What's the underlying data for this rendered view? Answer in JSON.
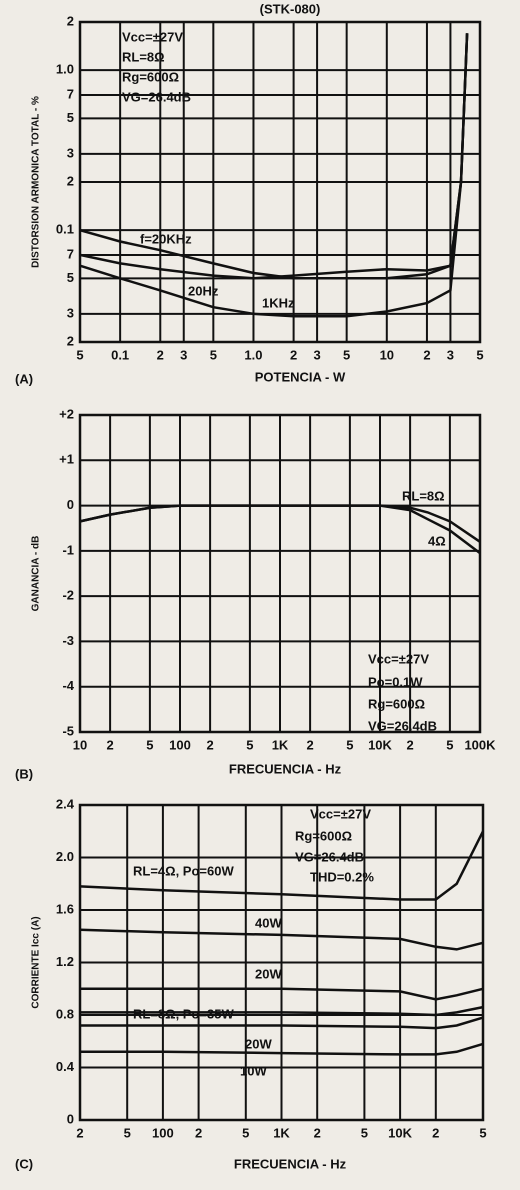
{
  "chart_data": [
    {
      "type": "line",
      "title": "(STK-080)",
      "panel_label": "(A)",
      "xlabel": "POTENCIA - W",
      "ylabel": "DISTORSION ARMONICA TOTAL - %",
      "xscale": "log",
      "yscale": "log",
      "grid": true,
      "xlim": [
        0.05,
        50
      ],
      "ylim": [
        0.02,
        2
      ],
      "xticks": [
        {
          "value": 0.05,
          "label": "5"
        },
        0.1,
        {
          "value": 0.2,
          "label": "2"
        },
        {
          "value": 0.3,
          "label": "3"
        },
        {
          "value": 0.5,
          "label": "5"
        },
        {
          "value": 1,
          "label": "1.0"
        },
        2,
        3,
        5,
        10,
        {
          "value": 20,
          "label": "2"
        },
        {
          "value": 30,
          "label": "3"
        },
        {
          "value": 50,
          "label": "5"
        }
      ],
      "yticks": [
        {
          "value": 0.02,
          "label": "2"
        },
        {
          "value": 0.03,
          "label": "3"
        },
        {
          "value": 0.05,
          "label": "5"
        },
        {
          "value": 0.07,
          "label": "7"
        },
        0.1,
        {
          "value": 0.2,
          "label": "2"
        },
        {
          "value": 0.3,
          "label": "3"
        },
        {
          "value": 0.5,
          "label": "5"
        },
        {
          "value": 0.7,
          "label": "7"
        },
        {
          "value": 1,
          "label": "1.0"
        },
        2
      ],
      "annotations": [
        "Vcc=±27V",
        "RL=8Ω",
        "Rg=600Ω",
        "VG=26.4dB"
      ],
      "x": [
        0.05,
        0.1,
        0.2,
        0.5,
        1,
        2,
        5,
        10,
        20,
        30,
        36,
        40
      ],
      "series": [
        {
          "name": "f=20KHz",
          "color": "#111",
          "values": [
            0.1,
            0.085,
            0.075,
            0.062,
            0.054,
            0.05,
            0.05,
            0.05,
            0.053,
            0.06,
            0.2,
            1.7
          ]
        },
        {
          "name": "20Hz",
          "color": "#111",
          "values": [
            0.07,
            0.062,
            0.057,
            0.052,
            0.05,
            0.052,
            0.055,
            0.057,
            0.056,
            0.06,
            0.2,
            1.7
          ]
        },
        {
          "name": "1KHz",
          "color": "#111",
          "values": [
            0.06,
            0.05,
            0.042,
            0.033,
            0.03,
            0.029,
            0.029,
            0.031,
            0.035,
            0.042,
            0.2,
            1.7
          ]
        }
      ]
    },
    {
      "type": "line",
      "panel_label": "(B)",
      "xlabel": "FRECUENCIA - Hz",
      "ylabel": "GANANCIA - dB",
      "xscale": "log",
      "yscale": "linear",
      "grid": true,
      "xlim": [
        10,
        100000
      ],
      "ylim": [
        -5,
        2
      ],
      "xticks": [
        10,
        {
          "value": 20,
          "label": "2"
        },
        {
          "value": 50,
          "label": "5"
        },
        100,
        {
          "value": 200,
          "label": "2"
        },
        {
          "value": 500,
          "label": "5"
        },
        {
          "value": 1000,
          "label": "1K"
        },
        {
          "value": 2000,
          "label": "2"
        },
        {
          "value": 5000,
          "label": "5"
        },
        {
          "value": 10000,
          "label": "10K"
        },
        {
          "value": 20000,
          "label": "2"
        },
        {
          "value": 50000,
          "label": "5"
        },
        {
          "value": 100000,
          "label": "100K"
        }
      ],
      "yticks": [
        {
          "value": 2,
          "label": "+2"
        },
        {
          "value": 1,
          "label": "+1"
        },
        0,
        -1,
        -2,
        -3,
        -4,
        -5
      ],
      "annotations": [
        "Vcc=±27V",
        "Po=0.1W",
        "Rg=600Ω",
        "VG=26.4dB"
      ],
      "x": [
        10,
        20,
        50,
        100,
        1000,
        10000,
        20000,
        30000,
        50000,
        100000
      ],
      "series": [
        {
          "name": "RL=8Ω",
          "color": "#111",
          "values": [
            -0.35,
            -0.2,
            -0.05,
            0,
            0,
            0,
            -0.05,
            -0.15,
            -0.35,
            -0.8
          ]
        },
        {
          "name": "4Ω",
          "color": "#111",
          "values": [
            -0.35,
            -0.2,
            -0.05,
            0,
            0,
            0,
            -0.1,
            -0.3,
            -0.55,
            -1.05
          ]
        }
      ]
    },
    {
      "type": "line",
      "panel_label": "(C)",
      "xlabel": "FRECUENCIA - Hz",
      "ylabel": "CORRIENTE Icc (A)",
      "xscale": "log",
      "yscale": "linear",
      "grid": true,
      "xlim": [
        20,
        50000
      ],
      "ylim": [
        0,
        2.4
      ],
      "xticks": [
        {
          "value": 20,
          "label": "2"
        },
        {
          "value": 50,
          "label": "5"
        },
        100,
        {
          "value": 200,
          "label": "2"
        },
        {
          "value": 500,
          "label": "5"
        },
        {
          "value": 1000,
          "label": "1K"
        },
        {
          "value": 2000,
          "label": "2"
        },
        {
          "value": 5000,
          "label": "5"
        },
        {
          "value": 10000,
          "label": "10K"
        },
        {
          "value": 20000,
          "label": "2"
        },
        {
          "value": 50000,
          "label": "5"
        }
      ],
      "yticks": [
        0,
        0.4,
        0.8,
        1.2,
        1.6,
        {
          "value": 2,
          "label": "2.0"
        },
        2.4
      ],
      "annotations": [
        "Vcc=±27V",
        "Rg=600Ω",
        "VG=26.4dB",
        "THD=0.2%"
      ],
      "x": [
        20,
        100,
        1000,
        10000,
        20000,
        30000,
        50000
      ],
      "series": [
        {
          "name": "RL=4Ω, Po=60W",
          "color": "#111",
          "values": [
            1.78,
            1.75,
            1.72,
            1.68,
            1.68,
            1.8,
            2.2
          ]
        },
        {
          "name": "40W",
          "color": "#111",
          "values": [
            1.45,
            1.43,
            1.41,
            1.38,
            1.32,
            1.3,
            1.35
          ]
        },
        {
          "name": "20W",
          "color": "#111",
          "values": [
            1.0,
            1.0,
            1.0,
            0.98,
            0.92,
            0.95,
            1.0
          ]
        },
        {
          "name": "RL=8Ω, Po=35W",
          "color": "#111",
          "values": [
            0.82,
            0.82,
            0.82,
            0.81,
            0.8,
            0.82,
            0.86
          ]
        },
        {
          "name": "20W",
          "color": "#111",
          "values": [
            0.72,
            0.72,
            0.72,
            0.71,
            0.7,
            0.72,
            0.78
          ]
        },
        {
          "name": "10W",
          "color": "#111",
          "values": [
            0.52,
            0.52,
            0.51,
            0.5,
            0.5,
            0.52,
            0.58
          ]
        }
      ]
    }
  ]
}
